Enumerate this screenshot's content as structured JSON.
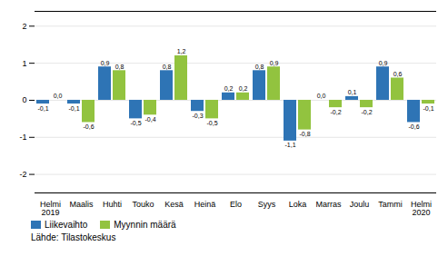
{
  "chart_data": {
    "type": "bar",
    "categories": [
      "Helmi\n2019",
      "Maalis",
      "Huhti",
      "Touko",
      "Kesä",
      "Heinä",
      "Elo",
      "Syys",
      "Loka",
      "Marras",
      "Joulu",
      "Tammi",
      "Helmi\n2020"
    ],
    "series": [
      {
        "name": "Liikevaihto",
        "color": "#2E74B5",
        "values": [
          -0.1,
          -0.1,
          0.9,
          -0.5,
          0.8,
          -0.3,
          0.2,
          0.8,
          -1.1,
          0.0,
          0.1,
          0.9,
          -0.6
        ],
        "value_labels": [
          "-0,1",
          "-0,1",
          "0,9",
          "-0,5",
          "0,8",
          "-0,3",
          "0,2",
          "0,8",
          "-1,1",
          "0,0",
          "0,1",
          "0,9",
          "-0,6"
        ]
      },
      {
        "name": "Myynnin määrä",
        "color": "#92C33F",
        "values": [
          0.0,
          -0.6,
          0.8,
          -0.4,
          1.2,
          -0.5,
          0.2,
          0.9,
          -0.8,
          -0.2,
          -0.2,
          0.6,
          -0.1
        ],
        "value_labels": [
          "0,0",
          "-0,6",
          "0,8",
          "-0,4",
          "1,2",
          "-0,5",
          "0,2",
          "0,9",
          "-0,8",
          "-0,2",
          "-0,2",
          "0,6",
          "-0,1"
        ]
      }
    ],
    "ylim": [
      -2.5,
      2.4
    ],
    "yticks": [
      -2,
      -1,
      0,
      1,
      2
    ],
    "grid": true,
    "data_labels": true,
    "legend": "lower left",
    "annotations": [
      "Lähde: Tilastokeskus"
    ]
  }
}
